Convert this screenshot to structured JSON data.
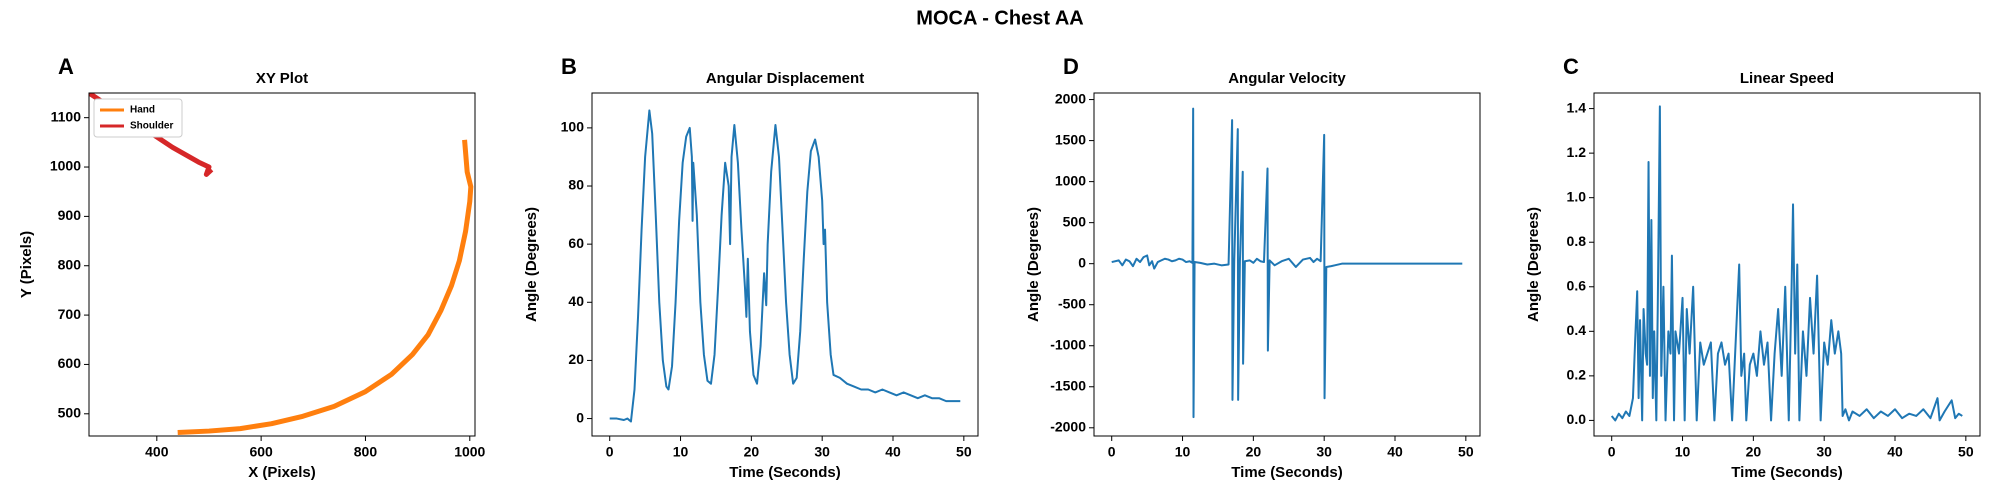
{
  "title": "MOCA - Chest AA",
  "chart_data": [
    {
      "type": "line",
      "panel_label": "A",
      "title": "XY Plot",
      "x_label": "X (Pixels)",
      "y_label": "Y (Pixels)",
      "xlim": [
        270,
        1010
      ],
      "ylim": [
        455,
        1150
      ],
      "xticks": [
        400,
        600,
        800,
        1000
      ],
      "yticks": [
        500,
        600,
        700,
        800,
        900,
        1000,
        1100
      ],
      "legend": "upper left",
      "series": [
        {
          "name": "Hand",
          "color": "#ff7f0e",
          "x": [
            440,
            500,
            560,
            620,
            680,
            740,
            800,
            850,
            890,
            920,
            945,
            965,
            980,
            992,
            1000,
            1002,
            995,
            990
          ],
          "values": [
            462,
            465,
            470,
            480,
            495,
            515,
            545,
            580,
            620,
            660,
            710,
            760,
            810,
            870,
            930,
            960,
            990,
            1055
          ]
        },
        {
          "name": "Shoulder",
          "color": "#d62728",
          "x": [
            270,
            320,
            380,
            430,
            480,
            500,
            495,
            505
          ],
          "values": [
            1150,
            1115,
            1075,
            1040,
            1010,
            1000,
            985,
            995
          ]
        }
      ]
    },
    {
      "type": "line",
      "panel_label": "B",
      "title": "Angular Displacement",
      "x_label": "Time (Seconds)",
      "y_label": "Angle (Degrees)",
      "xlim": [
        -2.5,
        52
      ],
      "ylim": [
        -6,
        112
      ],
      "xticks": [
        0,
        10,
        20,
        30,
        40,
        50
      ],
      "yticks": [
        0,
        20,
        40,
        60,
        80,
        100
      ],
      "color": "#1f77b4",
      "x": [
        0,
        1,
        2,
        2.5,
        3,
        3.5,
        4,
        4.5,
        5,
        5.6,
        6,
        6.5,
        7,
        7.5,
        8,
        8.3,
        8.8,
        9.3,
        9.8,
        10.3,
        10.8,
        11.3,
        11.6,
        11.7,
        11.8,
        12.3,
        12.8,
        13.3,
        13.8,
        14.3,
        14.8,
        15.3,
        15.8,
        16.3,
        16.8,
        17,
        17.2,
        17.6,
        18.1,
        18.6,
        19.1,
        19.3,
        19.5,
        19.8,
        20.3,
        20.8,
        21.3,
        21.8,
        22.1,
        22.3,
        22.8,
        23.4,
        23.9,
        24.4,
        24.9,
        25.4,
        25.9,
        26.4,
        26.9,
        27.4,
        27.9,
        28.4,
        29,
        29.5,
        30,
        30.2,
        30.4,
        30.7,
        31.2,
        31.6,
        32.5,
        33.5,
        34.5,
        35.5,
        36.5,
        37.5,
        38.5,
        39.5,
        40.5,
        41.5,
        42.5,
        43.5,
        44.5,
        45.5,
        46.5,
        47.5,
        48.5,
        49.5
      ],
      "values": [
        0,
        0,
        -0.5,
        0,
        -1,
        10,
        35,
        65,
        90,
        106,
        98,
        70,
        40,
        20,
        11,
        10,
        18,
        40,
        68,
        88,
        97,
        100,
        90,
        68,
        88,
        70,
        40,
        22,
        13,
        12,
        22,
        45,
        70,
        88,
        80,
        60,
        90,
        101,
        88,
        65,
        45,
        35,
        55,
        30,
        15,
        12,
        25,
        50,
        39,
        60,
        85,
        101,
        90,
        65,
        40,
        22,
        12,
        14,
        30,
        55,
        78,
        92,
        96,
        90,
        75,
        60,
        65,
        40,
        22,
        15,
        14,
        12,
        11,
        10,
        10,
        9,
        10,
        9,
        8,
        9,
        8,
        7,
        8,
        7,
        7,
        6,
        6,
        6
      ]
    },
    {
      "type": "line",
      "panel_label": "D",
      "title": "Angular Velocity",
      "x_label": "Time (Seconds)",
      "y_label": "Angle (Degrees)",
      "xlim": [
        -2.5,
        52
      ],
      "ylim": [
        -2100,
        2080
      ],
      "xticks": [
        0,
        10,
        20,
        30,
        40,
        50
      ],
      "yticks": [
        -2000,
        -1500,
        -1000,
        -500,
        0,
        500,
        1000,
        1500,
        2000
      ],
      "color": "#1f77b4",
      "x": [
        0,
        1,
        1.5,
        2,
        2.5,
        3,
        3.5,
        4,
        4.5,
        5,
        5.3,
        5.7,
        6,
        6.5,
        7,
        7.5,
        8,
        8.5,
        9,
        9.5,
        10,
        10.5,
        11,
        11.4,
        11.5,
        11.55,
        11.7,
        12.5,
        13.5,
        14.5,
        15.5,
        16.5,
        17,
        17.05,
        17.3,
        17.8,
        17.85,
        18.1,
        18.5,
        18.55,
        18.8,
        19.5,
        20,
        20.5,
        21,
        21.5,
        22,
        22.05,
        22.3,
        23,
        24,
        25,
        26,
        27,
        28,
        28.5,
        29,
        29.5,
        30,
        30.05,
        30.3,
        31,
        31.5,
        32.5,
        35,
        40,
        45,
        49.5
      ],
      "values": [
        20,
        40,
        -20,
        50,
        30,
        -30,
        60,
        20,
        80,
        100,
        -20,
        30,
        -60,
        20,
        40,
        60,
        50,
        30,
        40,
        60,
        50,
        20,
        30,
        10,
        1890,
        -1870,
        20,
        10,
        -10,
        0,
        -20,
        -10,
        1750,
        -1660,
        30,
        1640,
        -1660,
        20,
        1120,
        -1220,
        30,
        40,
        10,
        60,
        30,
        20,
        1160,
        -1060,
        40,
        -20,
        30,
        60,
        -40,
        50,
        70,
        20,
        60,
        30,
        1570,
        -1640,
        -40,
        -30,
        -20,
        0,
        0,
        0,
        0,
        0
      ]
    },
    {
      "type": "line",
      "panel_label": "C",
      "title": "Linear Speed",
      "x_label": "Time (Seconds)",
      "y_label": "Angle (Degrees)",
      "xlim": [
        -2.5,
        52
      ],
      "ylim": [
        -0.07,
        1.47
      ],
      "xticks": [
        0,
        10,
        20,
        30,
        40,
        50
      ],
      "yticks": [
        {
          "value": 0,
          "label": "0.0"
        },
        0.2,
        0.4,
        0.6,
        0.8,
        {
          "value": 1,
          "label": "1.0"
        },
        1.2,
        1.4
      ],
      "color": "#1f77b4",
      "x": [
        0,
        0.5,
        1,
        1.5,
        2,
        2.5,
        3,
        3.3,
        3.6,
        3.8,
        4,
        4.3,
        4.5,
        4.8,
        5,
        5.2,
        5.4,
        5.6,
        5.8,
        6,
        6.3,
        6.5,
        6.8,
        7,
        7.3,
        7.6,
        8,
        8.3,
        8.5,
        8.8,
        9,
        9.5,
        10,
        10.3,
        10.6,
        11,
        11.5,
        12,
        12.5,
        13,
        13.5,
        14,
        14.5,
        15,
        15.5,
        16,
        16.5,
        17,
        17.5,
        18,
        18.3,
        18.7,
        19,
        19.5,
        20,
        20.5,
        21,
        21.5,
        22,
        22.5,
        23,
        23.5,
        24,
        24.5,
        25,
        25.4,
        25.6,
        25.9,
        26.2,
        26.5,
        27,
        27.5,
        28,
        28.5,
        29,
        29.5,
        30,
        30.5,
        31,
        31.5,
        32,
        32.4,
        32.6,
        33,
        33.5,
        34,
        35,
        36,
        37,
        38,
        39,
        40,
        41,
        42,
        43,
        44,
        45,
        46,
        46.3,
        47,
        48,
        48.5,
        49,
        49.5
      ],
      "values": [
        0.02,
        0,
        0.03,
        0.01,
        0.04,
        0.02,
        0.1,
        0.35,
        0.58,
        0.1,
        0.45,
        0,
        0.5,
        0.3,
        0.25,
        1.16,
        0.2,
        0.9,
        0.1,
        0.4,
        0,
        0.5,
        1.41,
        0.2,
        0.6,
        0,
        0.4,
        0.3,
        0.74,
        0,
        0.4,
        0.3,
        0.55,
        0,
        0.5,
        0.3,
        0.6,
        0,
        0.35,
        0.25,
        0.3,
        0.35,
        0,
        0.3,
        0.35,
        0.25,
        0.3,
        0,
        0.35,
        0.7,
        0.2,
        0.3,
        0,
        0.25,
        0.3,
        0.2,
        0.4,
        0.25,
        0.35,
        0,
        0.3,
        0.5,
        0.2,
        0.6,
        0,
        0.6,
        0.97,
        0.3,
        0.7,
        0,
        0.4,
        0.2,
        0.55,
        0.3,
        0.65,
        0,
        0.35,
        0.25,
        0.45,
        0.3,
        0.4,
        0.3,
        0.02,
        0.05,
        0,
        0.04,
        0.02,
        0.05,
        0.01,
        0.04,
        0.02,
        0.05,
        0.01,
        0.03,
        0.02,
        0.05,
        0.01,
        0.1,
        0,
        0.04,
        0.09,
        0.01,
        0.03,
        0.02
      ]
    }
  ]
}
